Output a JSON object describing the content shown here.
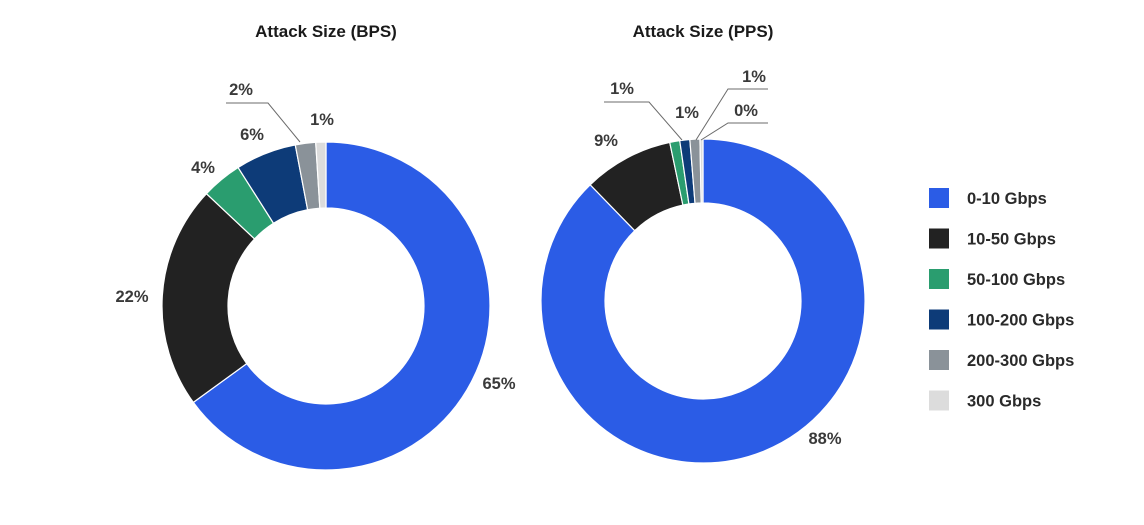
{
  "chart_data": [
    {
      "type": "pie",
      "title": "Attack Size (BPS)",
      "categories": [
        "0-10 Gbps",
        "10-50 Gbps",
        "50-100 Gbps",
        "100-200 Gbps",
        "200-300 Gbps",
        "300 Gbps"
      ],
      "values": [
        65,
        22,
        4,
        6,
        2,
        1
      ],
      "labels": [
        "65%",
        "22%",
        "4%",
        "6%",
        "2%",
        "1%"
      ]
    },
    {
      "type": "pie",
      "title": "Attack Size (PPS)",
      "categories": [
        "0-10 Gbps",
        "10-50 Gbps",
        "50-100 Gbps",
        "100-200 Gbps",
        "200-300 Gbps",
        "300 Gbps"
      ],
      "values": [
        88,
        9,
        1,
        1,
        1,
        0
      ],
      "labels": [
        "88%",
        "9%",
        "1%",
        "1%",
        "1%",
        "0%"
      ]
    }
  ],
  "legend": {
    "placement": "right",
    "items": [
      {
        "label": "0-10 Gbps",
        "color": "#2b5ce6"
      },
      {
        "label": "10-50 Gbps",
        "color": "#222222"
      },
      {
        "label": "50-100 Gbps",
        "color": "#2a9d6f"
      },
      {
        "label": "100-200 Gbps",
        "color": "#0d3b78"
      },
      {
        "label": "200-300 Gbps",
        "color": "#8a9299"
      },
      {
        "label": "300 Gbps",
        "color": "#dcdcdc"
      }
    ]
  }
}
